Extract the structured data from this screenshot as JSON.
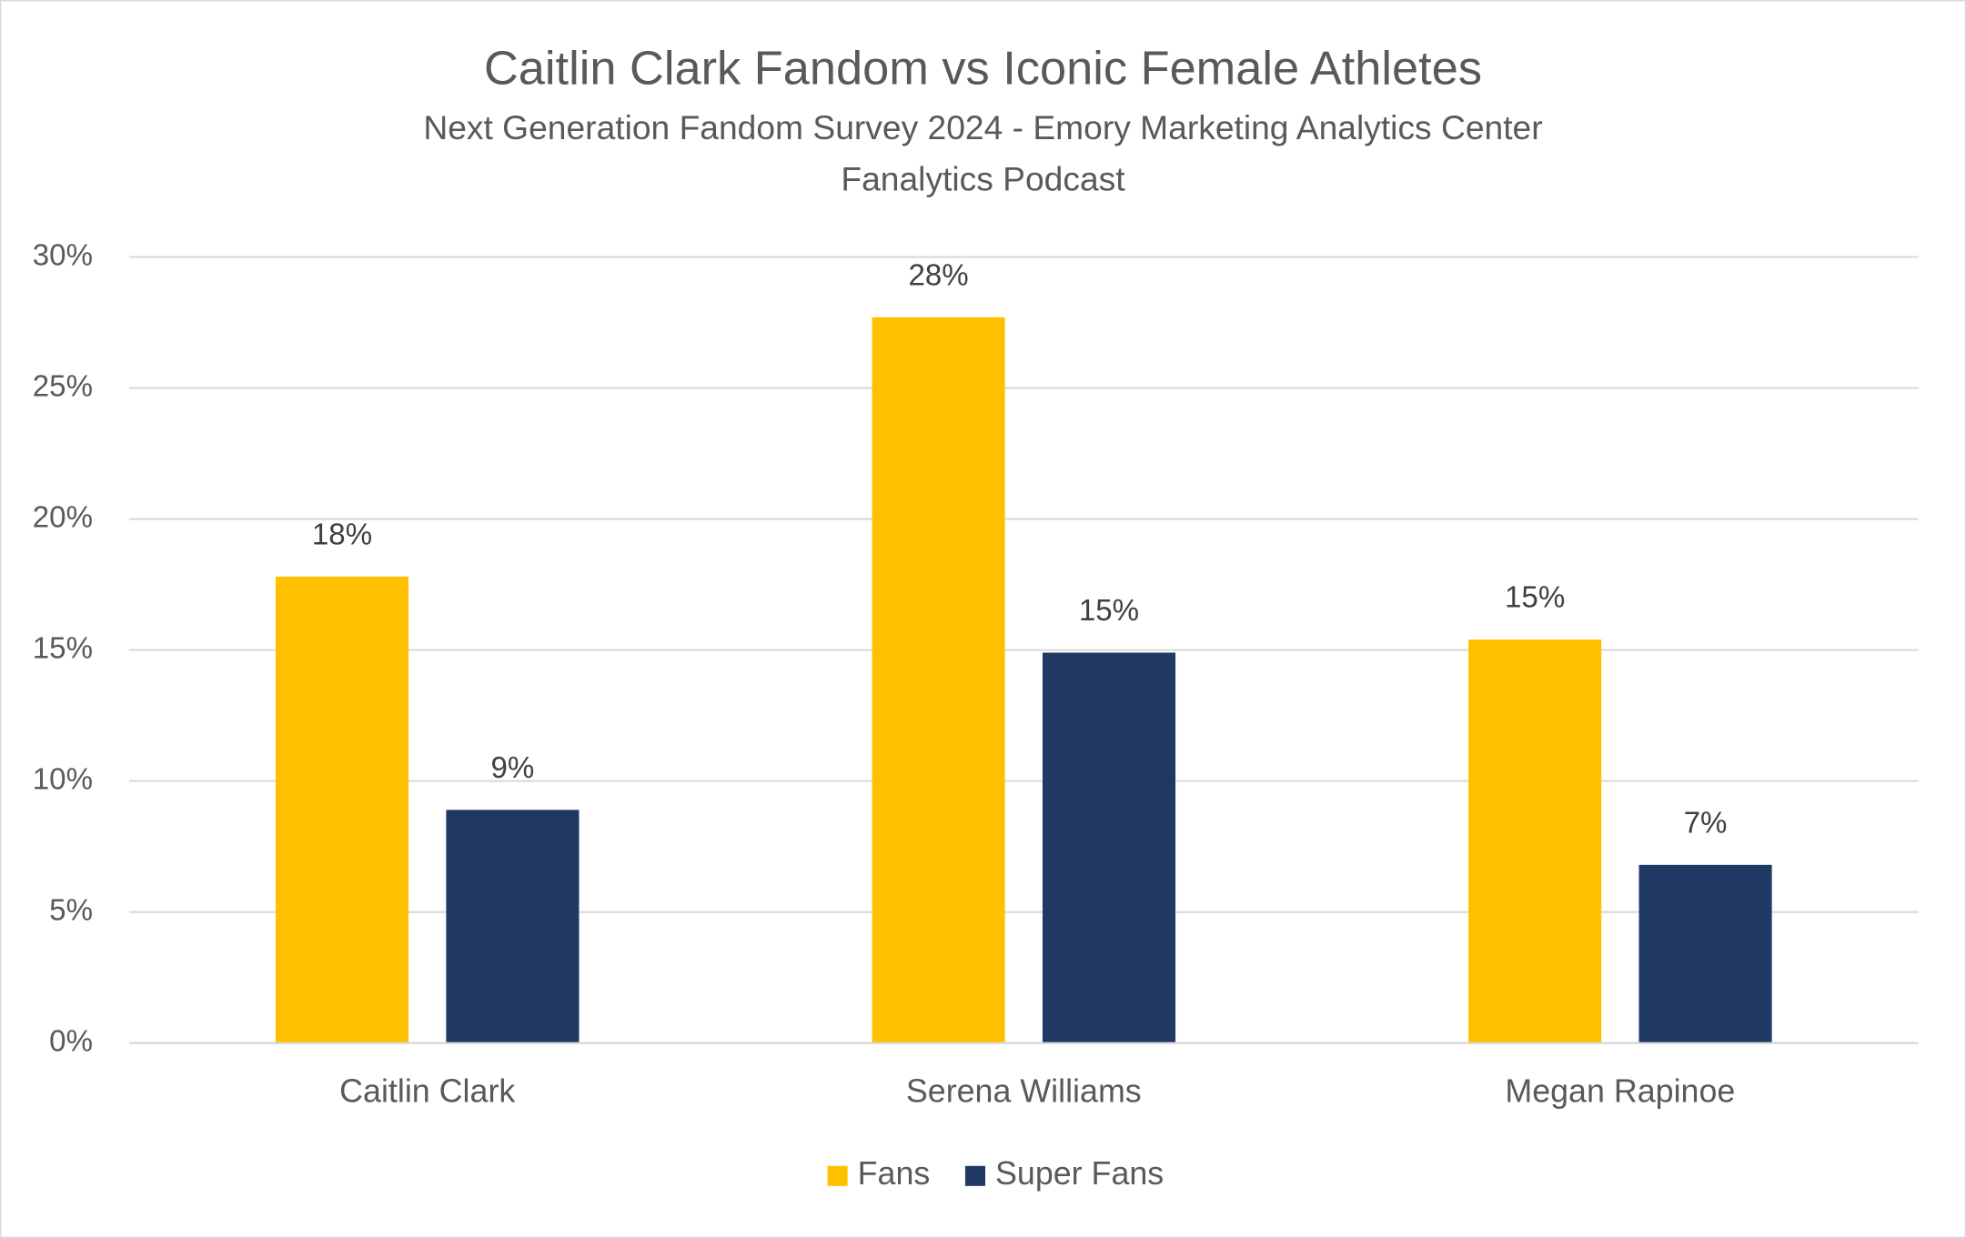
{
  "chart_data": {
    "type": "bar",
    "title": "Caitlin Clark Fandom vs Iconic Female Athletes",
    "subtitle": [
      "Next Generation Fandom Survey 2024 - Emory Marketing Analytics Center",
      "Fanalytics Podcast"
    ],
    "categories": [
      "Caitlin Clark",
      "Serena Williams",
      "Megan Rapinoe"
    ],
    "series": [
      {
        "name": "Fans",
        "color": "#ffc000",
        "values": [
          17.8,
          27.7,
          15.4
        ],
        "value_labels": [
          "18%",
          "28%",
          "15%"
        ]
      },
      {
        "name": "Super Fans",
        "color": "#1f3864",
        "values": [
          8.9,
          14.9,
          6.8
        ],
        "value_labels": [
          "9%",
          "15%",
          "7%"
        ]
      }
    ],
    "ylim": [
      0,
      30
    ],
    "yticks": [
      {
        "value": 0,
        "label": "0%"
      },
      {
        "value": 5,
        "label": "5%"
      },
      {
        "value": 10,
        "label": "10%"
      },
      {
        "value": 15,
        "label": "15%"
      },
      {
        "value": 20,
        "label": "20%"
      },
      {
        "value": 25,
        "label": "25%"
      },
      {
        "value": 30,
        "label": "30%"
      }
    ],
    "grid": true,
    "legend": "bottom"
  }
}
